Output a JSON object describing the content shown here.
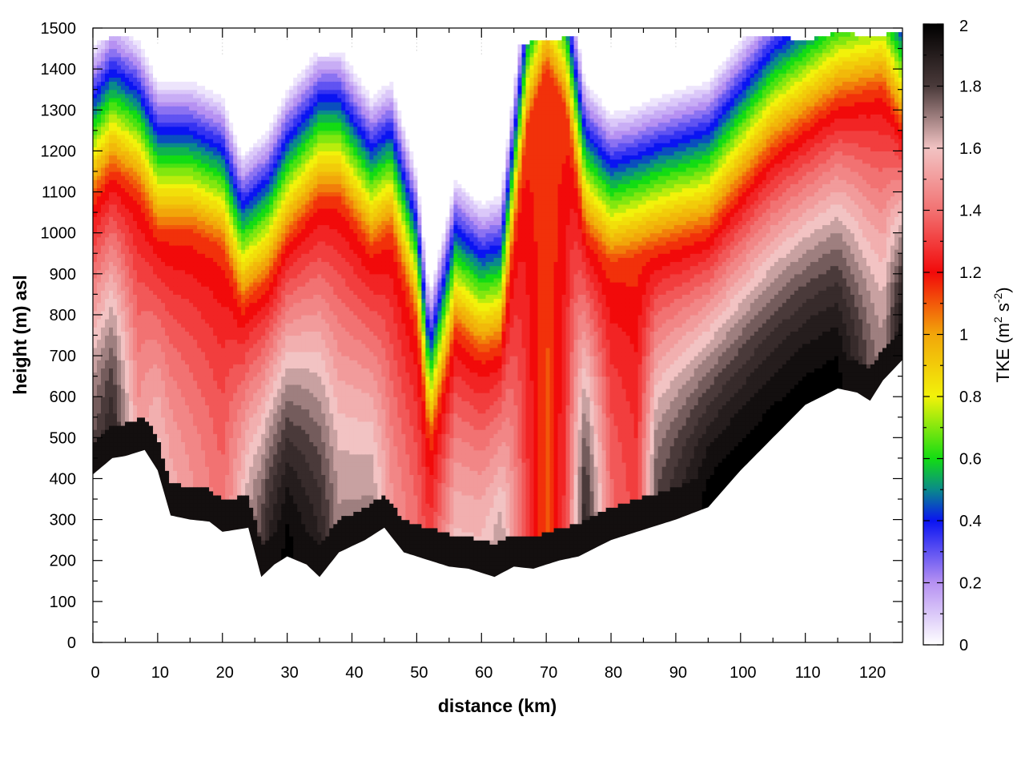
{
  "chart_data": {
    "type": "heatmap",
    "title": "",
    "xlabel": "distance (km)",
    "ylabel": "height (m) asl",
    "xlim": [
      0,
      125
    ],
    "ylim": [
      0,
      1500
    ],
    "x_ticks": [
      0,
      10,
      20,
      30,
      40,
      50,
      60,
      70,
      80,
      90,
      100,
      110,
      120
    ],
    "y_ticks": [
      0,
      100,
      200,
      300,
      400,
      500,
      600,
      700,
      800,
      900,
      1000,
      1100,
      1200,
      1300,
      1400,
      1500
    ],
    "grid": true,
    "colorbar": {
      "label_main": "TKE (m",
      "label_sup1": "2",
      "label_mid": " s",
      "label_sup2": "-2",
      "label_end": ")",
      "range": [
        0,
        2
      ],
      "ticks": [
        "0",
        "0.2",
        "0.4",
        "0.6",
        "0.8",
        "1",
        "1.2",
        "1.4",
        "1.6",
        "1.8",
        "2"
      ],
      "colormap": [
        [
          0.0,
          "#ffffff"
        ],
        [
          0.2,
          "#b691f2"
        ],
        [
          0.4,
          "#0a14f2"
        ],
        [
          0.5,
          "#0a8a8a"
        ],
        [
          0.6,
          "#13dc13"
        ],
        [
          0.8,
          "#f2f20a"
        ],
        [
          1.0,
          "#f2a60a"
        ],
        [
          1.2,
          "#f20a0a"
        ],
        [
          1.4,
          "#f27272"
        ],
        [
          1.6,
          "#f2c3c3"
        ],
        [
          1.8,
          "#4a3a3a"
        ],
        [
          2.0,
          "#000000"
        ]
      ]
    },
    "terrain": {
      "x": [
        0,
        3,
        5,
        8,
        10,
        12,
        15,
        18,
        20,
        24,
        26,
        28,
        30,
        33,
        35,
        38,
        42,
        45,
        48,
        52,
        55,
        58,
        62,
        65,
        68,
        72,
        75,
        80,
        85,
        90,
        95,
        100,
        105,
        110,
        115,
        118,
        120,
        122,
        125
      ],
      "y": [
        410,
        450,
        455,
        470,
        420,
        310,
        300,
        295,
        270,
        280,
        160,
        190,
        210,
        190,
        160,
        220,
        250,
        280,
        220,
        200,
        185,
        180,
        160,
        185,
        180,
        200,
        210,
        250,
        275,
        300,
        330,
        420,
        500,
        580,
        620,
        610,
        590,
        640,
        690
      ]
    },
    "top_height": {
      "x": [
        0,
        5,
        10,
        15,
        20,
        25,
        30,
        35,
        40,
        45,
        50,
        55,
        60,
        65,
        70,
        75,
        80,
        85,
        90,
        95,
        100,
        105,
        110,
        115,
        120,
        125
      ],
      "y": [
        1470,
        1480,
        1460,
        1440,
        1430,
        1420,
        1470,
        1430,
        1450,
        1480,
        1440,
        1450,
        1430,
        1460,
        1470,
        1480,
        1450,
        1440,
        1450,
        1460,
        1480,
        1480,
        1470,
        1490,
        1480,
        1490
      ]
    },
    "tke_field": {
      "x_km": [
        0,
        3,
        7,
        10,
        15,
        20,
        23,
        27,
        30,
        35,
        38,
        43,
        46,
        50,
        52,
        56,
        60,
        63,
        67,
        70,
        73,
        76,
        80,
        84,
        87,
        95,
        105,
        115,
        122,
        125
      ],
      "boundary_layer_top_m": [
        1080,
        1150,
        1100,
        1000,
        1000,
        960,
        820,
        880,
        980,
        1080,
        1080,
        960,
        1000,
        780,
        480,
        760,
        700,
        720,
        1250,
        1400,
        1300,
        1000,
        920,
        940,
        960,
        1000,
        1200,
        1320,
        1350,
        1250
      ],
      "surface_tke": [
        1.8,
        1.9,
        1.5,
        1.6,
        1.5,
        1.4,
        1.6,
        1.9,
        2.0,
        1.9,
        1.7,
        1.7,
        1.5,
        1.4,
        1.3,
        1.6,
        1.6,
        1.7,
        1.3,
        1.1,
        1.3,
        1.9,
        1.4,
        1.3,
        1.8,
        2.0,
        2.0,
        2.0,
        1.7,
        2.0
      ]
    }
  }
}
